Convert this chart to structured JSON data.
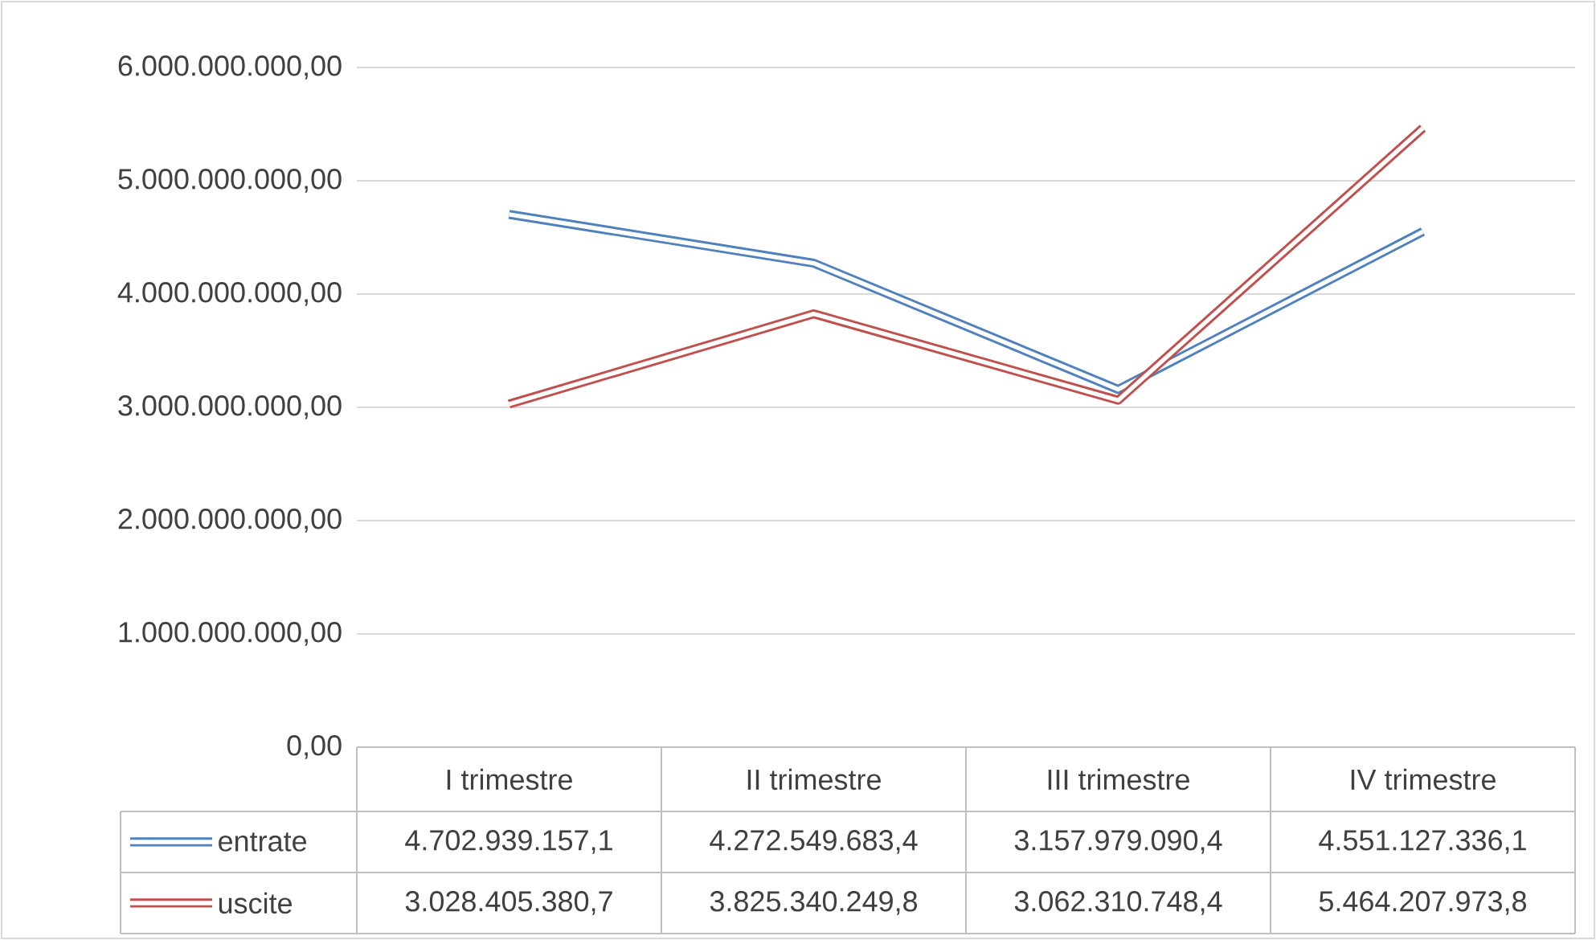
{
  "chart_data": {
    "type": "line",
    "categories": [
      "I trimestre",
      "II trimestre",
      "III trimestre",
      "IV trimestre"
    ],
    "series": [
      {
        "name": "entrate",
        "color": "#4f81bd",
        "values": [
          4702939157.1,
          4272549683.4,
          3157979090.4,
          4551127336.1
        ],
        "value_labels": [
          "4.702.939.157,1",
          "4.272.549.683,4",
          "3.157.979.090,4",
          "4.551.127.336,1"
        ]
      },
      {
        "name": "uscite",
        "color": "#c0504d",
        "values": [
          3028405380.7,
          3825340249.8,
          3062310748.4,
          5464207973.8
        ],
        "value_labels": [
          "3.028.405.380,7",
          "3.825.340.249,8",
          "3.062.310.748,4",
          "5.464.207.973,8"
        ]
      }
    ],
    "ylim": [
      0,
      6000000000
    ],
    "yticks": [
      {
        "value": 0,
        "label": "0,00"
      },
      {
        "value": 1000000000,
        "label": "1.000.000.000,00"
      },
      {
        "value": 2000000000,
        "label": "2.000.000.000,00"
      },
      {
        "value": 3000000000,
        "label": "3.000.000.000,00"
      },
      {
        "value": 4000000000,
        "label": "4.000.000.000,00"
      },
      {
        "value": 5000000000,
        "label": "5.000.000.000,00"
      },
      {
        "value": 6000000000,
        "label": "6.000.000.000,00"
      }
    ],
    "grid": "y",
    "legend": "bottom",
    "line_style": "solid"
  }
}
